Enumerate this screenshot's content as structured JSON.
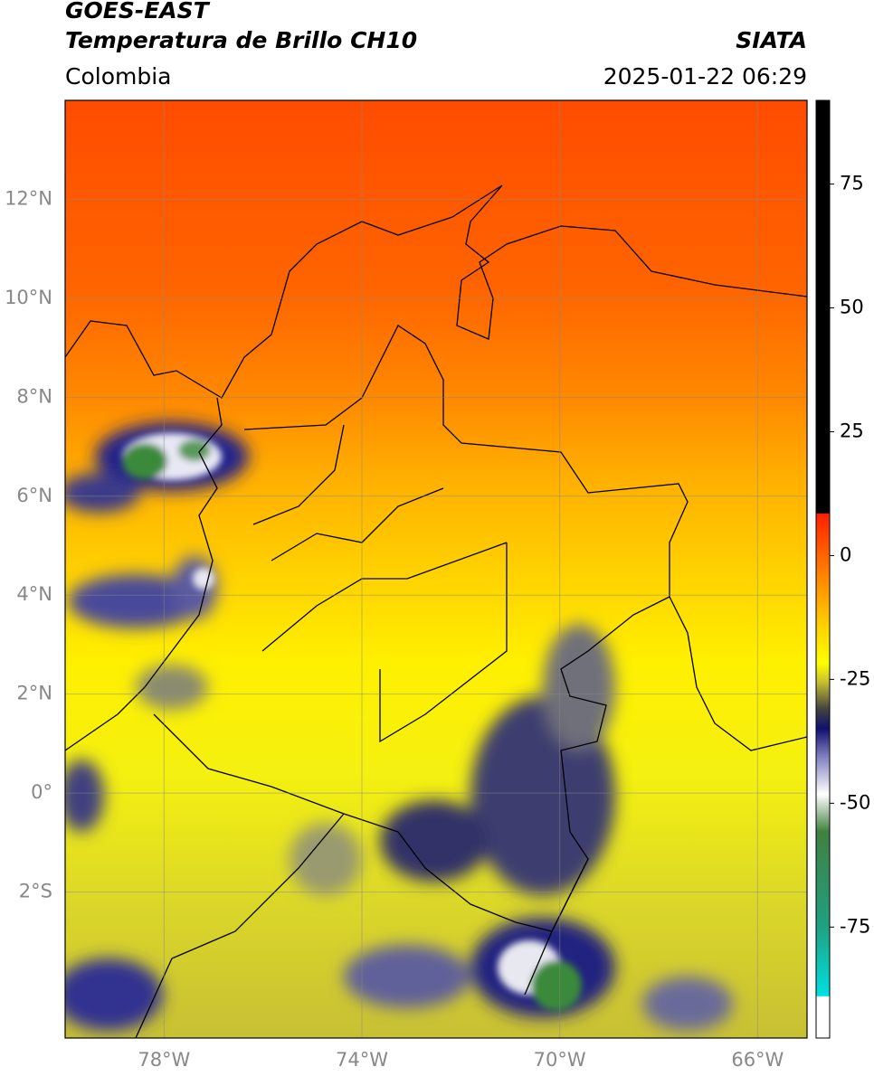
{
  "map": {
    "title": "GOES-EAST",
    "subtitle": "Temperatura de Brillo CH10",
    "source": "SIATA",
    "region": "Colombia",
    "timestamp": "2025-01-22 06:29",
    "xlim": [
      -80,
      -65
    ],
    "ylim": [
      -4.95,
      14
    ],
    "xticks": [
      {
        "value": -78,
        "label": "78°W"
      },
      {
        "value": -74,
        "label": "74°W"
      },
      {
        "value": -70,
        "label": "70°W"
      },
      {
        "value": -66,
        "label": "66°W"
      }
    ],
    "yticks": [
      {
        "value": 12,
        "label": "12°N"
      },
      {
        "value": 10,
        "label": "10°N"
      },
      {
        "value": 8,
        "label": "8°N"
      },
      {
        "value": 6,
        "label": "6°N"
      },
      {
        "value": 4,
        "label": "4°N"
      },
      {
        "value": 2,
        "label": "2°N"
      },
      {
        "value": 0,
        "label": "0°"
      },
      {
        "value": -2,
        "label": "2°S"
      }
    ],
    "colorbar": {
      "lim": [
        -97.4,
        91.9
      ],
      "ticks": [
        75,
        50,
        25,
        0,
        -25,
        -50,
        -75
      ]
    },
    "grid": true
  }
}
